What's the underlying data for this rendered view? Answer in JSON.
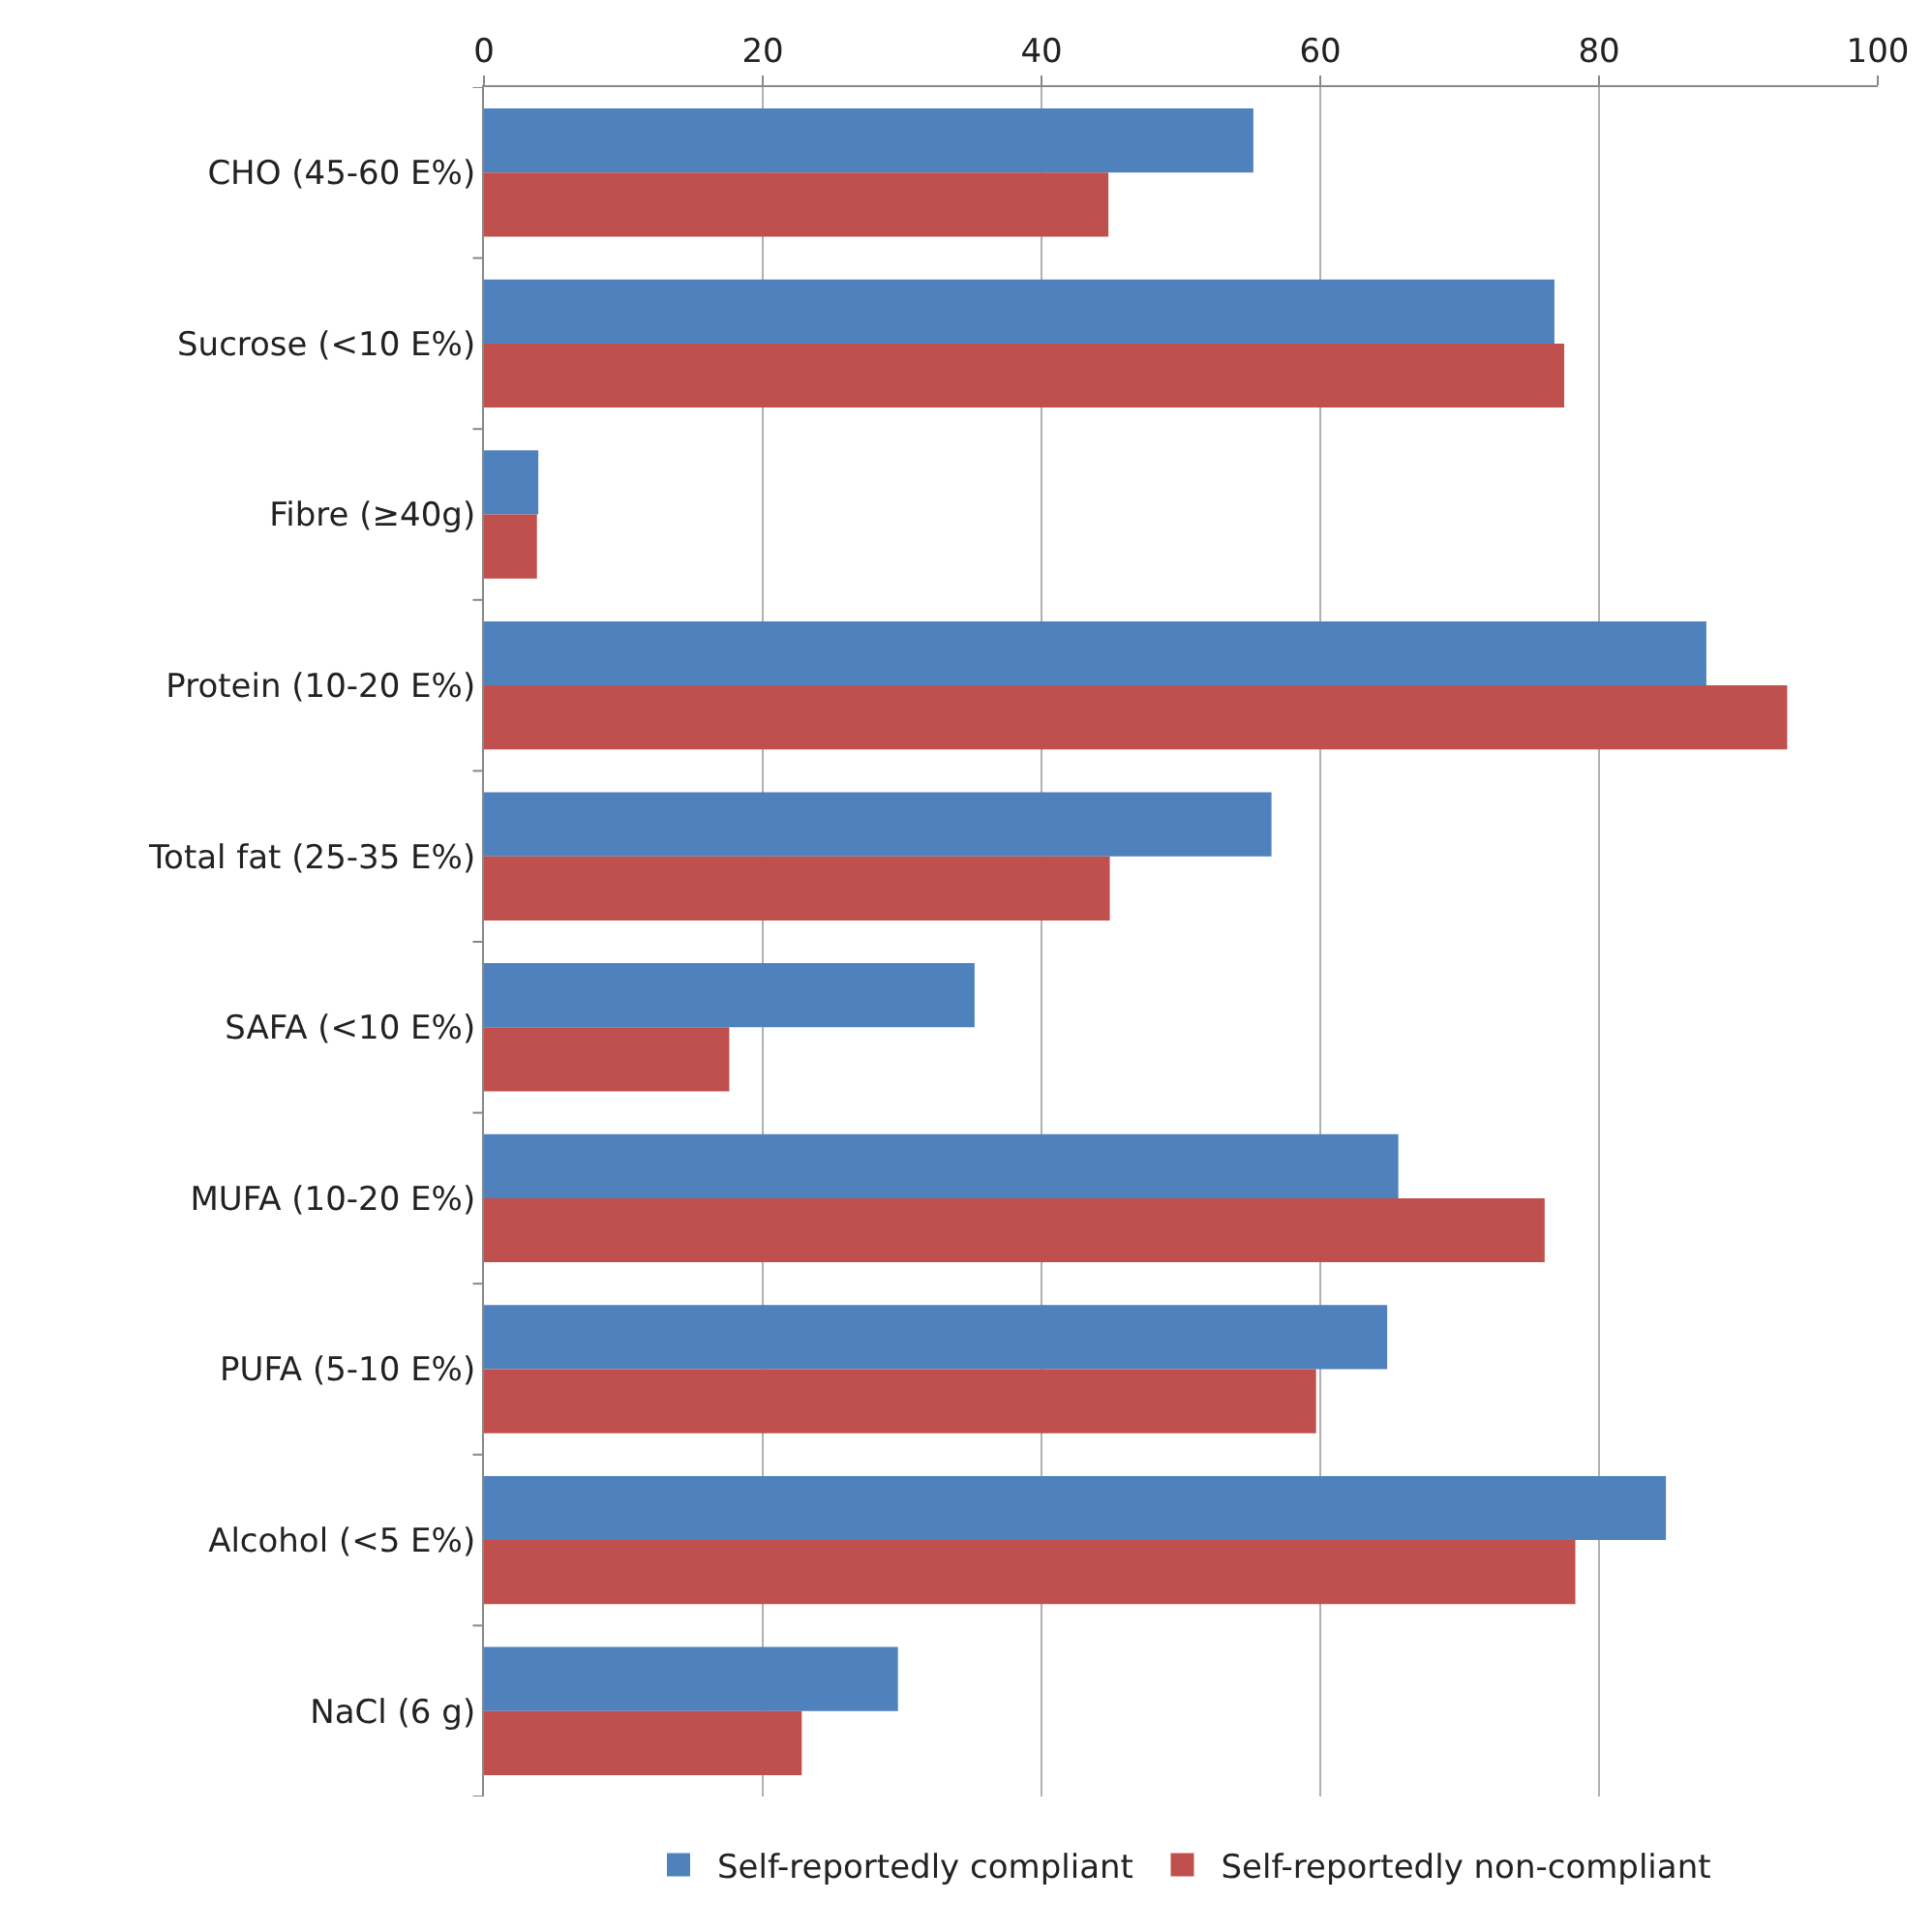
{
  "chart_data": {
    "type": "bar",
    "orientation": "horizontal",
    "categories": [
      "CHO (45-60 E%)",
      "Sucrose (<10 E%)",
      "Fibre (≥40g)",
      "Protein (10-20 E%)",
      "Total fat (25-35 E%)",
      "SAFA (<10 E%)",
      "MUFA (10-20 E%)",
      "PUFA (5-10 E%)",
      "Alcohol (<5 E%)",
      "NaCl (6 g)"
    ],
    "series": [
      {
        "name": "Self-reportedly compliant",
        "color": "#4f81bd",
        "values": [
          55.2,
          76.8,
          3.9,
          87.7,
          56.5,
          35.2,
          65.6,
          64.8,
          84.8,
          29.7
        ]
      },
      {
        "name": "Self-reportedly non-compliant",
        "color": "#c0504d",
        "values": [
          44.8,
          77.5,
          3.8,
          93.5,
          44.9,
          17.6,
          76.1,
          59.7,
          78.3,
          22.8
        ]
      }
    ],
    "xlim": [
      0,
      100
    ],
    "xticks": [
      0,
      20,
      40,
      60,
      80,
      100
    ],
    "grid": "x",
    "legend": "bottom"
  }
}
